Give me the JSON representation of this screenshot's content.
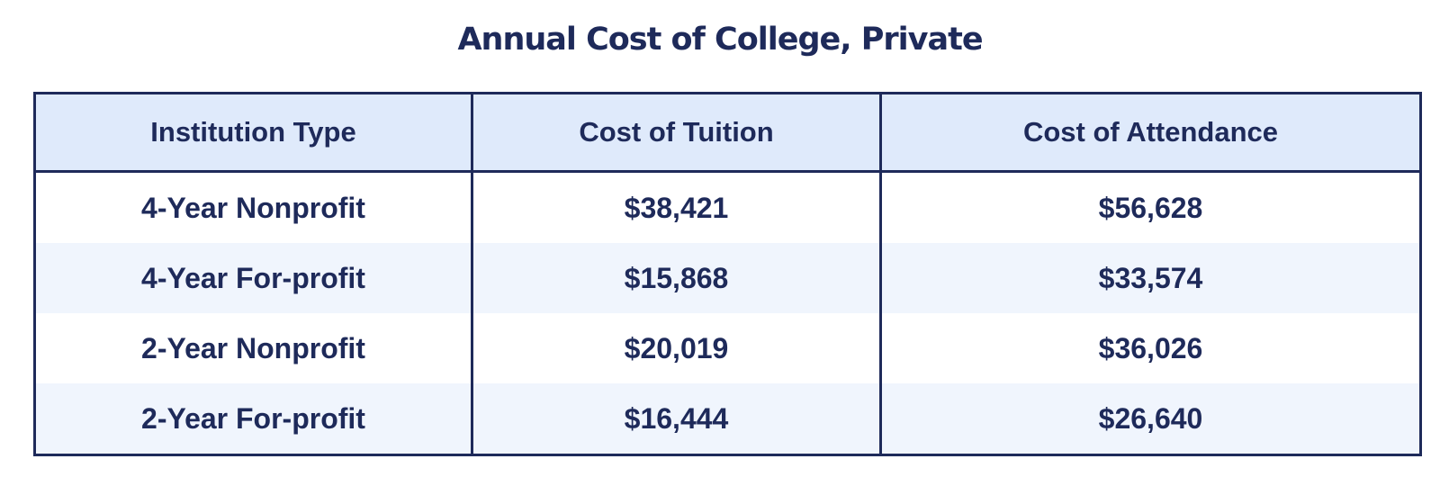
{
  "chart_data": {
    "type": "table",
    "title": "Annual Cost of College, Private",
    "columns": [
      "Institution Type",
      "Cost of Tuition",
      "Cost of Attendance"
    ],
    "rows": [
      [
        "4-Year Nonprofit",
        "$38,421",
        "$56,628"
      ],
      [
        "4-Year For-profit",
        "$15,868",
        "$33,574"
      ],
      [
        "2-Year Nonprofit",
        "$20,019",
        "$36,026"
      ],
      [
        "2-Year For-profit",
        "$16,444",
        "$26,640"
      ]
    ],
    "colors": {
      "text": "#1e2a5a",
      "border": "#1e2a5a",
      "header_bg": "#dfeafb",
      "row_alt_bg": "#f0f5fd",
      "row_bg": "#ffffff"
    }
  }
}
